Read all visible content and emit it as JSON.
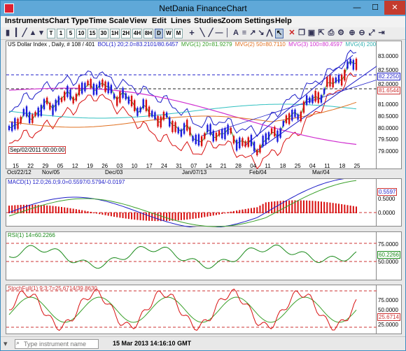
{
  "window": {
    "title": "NetDania FinanceChart",
    "min": "—",
    "max": "☐",
    "close": "✕"
  },
  "menu": [
    "Instruments",
    "Chart Type",
    "Time Scale",
    "View",
    "Edit",
    "Lines",
    "Studies",
    "Zoom",
    "Settings",
    "Help"
  ],
  "toolbar": {
    "timeframes": [
      "T",
      "1",
      "5",
      "10",
      "15",
      "30",
      "1H",
      "2H",
      "4H",
      "8H",
      "D",
      "W",
      "M"
    ],
    "selected": "D"
  },
  "main_header": {
    "instrument": "US Dollar Index , Daily, # 108 / 401",
    "bol": "BOL(1) 20;2.0=83.2101/80.6457",
    "mvg1": "MVG(1) 20=81.9279",
    "mvg2": "MVG(2) 50=80.7110",
    "mvg3": "MVG(3) 100=80.4597",
    "mvg4": "MVG(4) 200=80.9282"
  },
  "main_axis": {
    "ticks": [
      "83.0000",
      "82.5000",
      "82.0000",
      "81.5000",
      "81.0000",
      "80.5000",
      "80.0000",
      "79.5000",
      "79.0000"
    ],
    "tag_blue": "82.2250",
    "tag_red": "81.6544"
  },
  "x_axis": {
    "days": [
      "15",
      "22",
      "29",
      "05",
      "12",
      "19",
      "26",
      "03",
      "10",
      "17",
      "24",
      "31",
      "07",
      "14",
      "21",
      "28",
      "04",
      "11",
      "18",
      "25",
      "04",
      "11",
      "18",
      "25"
    ],
    "months": [
      "Oct/22/12",
      "Nov/05",
      "Dec/03",
      "Jan/07/13",
      "Feb/04",
      "Mar/04"
    ],
    "selected_date": "Sep/02/2011 00:00:00"
  },
  "macd": {
    "header": "MACD(1) 12.0;26.0;9.0=0.5597/0.5794/-0.0197",
    "ticks": [
      "0.5000",
      "0.0000"
    ],
    "tag": "0.5597"
  },
  "rsi": {
    "header": "RSI(1) 14=60.2266",
    "ticks": [
      "75.0000",
      "50.0000"
    ],
    "tag": "60.2266"
  },
  "stoch": {
    "header": "StochFull(1) 9;3;7=25.6714/39.8630",
    "ticks": [
      "75.0000",
      "50.0000",
      "25.0000"
    ],
    "tag": "25.6714"
  },
  "status": {
    "search_placeholder": "Type instrument name",
    "datetime": "15 Mar 2013 14:16:10 GMT"
  },
  "colors": {
    "up": "#1a1adc",
    "down": "#d81010",
    "mvg1": "#3aa02a",
    "mvg2": "#e07020",
    "mvg3": "#d030d0",
    "mvg4": "#30c0c0",
    "bol": "#1e1ec8"
  }
}
